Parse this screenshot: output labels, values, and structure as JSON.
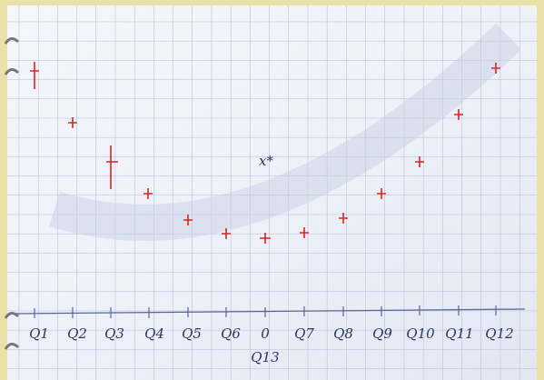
{
  "axis_labels": [
    "Q1",
    "Q2",
    "Q3",
    "Q4",
    "Q5",
    "Q6",
    "0",
    "Q7",
    "Q8",
    "Q9",
    "Q10",
    "Q11",
    "Q12"
  ],
  "bottom_label": "Q13",
  "annotation": "x*"
}
